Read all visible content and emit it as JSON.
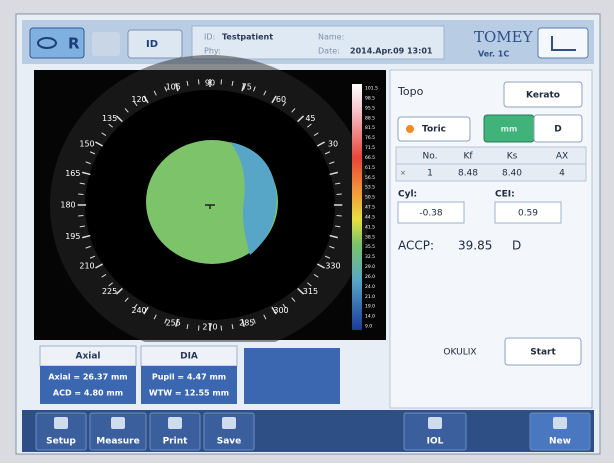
{
  "header": {
    "eye": "R",
    "id_button": "ID",
    "id_label": "ID:",
    "patient": "Testpatient",
    "name_label": "Name:",
    "phy_label": "Phy:",
    "date_label": "Date:",
    "date": "2014.Apr.09  13:01",
    "brand": "TOMEY",
    "version": "Ver. 1C"
  },
  "map": {
    "angle_labels": [
      30,
      45,
      60,
      75,
      90,
      105,
      120,
      135,
      150,
      165,
      180,
      195,
      210,
      225,
      240,
      255,
      270,
      285,
      300,
      315,
      330
    ],
    "scale_labels": [
      "101.5",
      "98.5",
      "95.5",
      "88.5",
      "81.5",
      "76.5",
      "71.5",
      "66.5",
      "61.5",
      "56.5",
      "53.5",
      "50.5",
      "47.5",
      "44.5",
      "41.5",
      "38.5",
      "35.5",
      "32.5",
      "29.0",
      "26.0",
      "24.0",
      "21.0",
      "19.0",
      "14.0",
      "9.0"
    ]
  },
  "panel": {
    "title": "Topo",
    "kerato": "Kerato",
    "toric": "Toric",
    "unit_mm": "mm",
    "unit_d": "D",
    "table": {
      "headers": [
        "No.",
        "Kf",
        "Ks",
        "AX"
      ],
      "row": [
        "1",
        "8.48",
        "8.40",
        "4"
      ]
    },
    "cyl_label": "Cyl:",
    "cyl": "-0.38",
    "cei_label": "CEI:",
    "cei": "0.59",
    "accp_label": "ACCP:",
    "accp": "39.85",
    "accp_unit": "D",
    "okulix": "OKULIX",
    "start": "Start"
  },
  "info": {
    "axial": {
      "title": "Axial",
      "lines": [
        "Axial = 26.37 mm",
        "ACD = 4.80 mm"
      ]
    },
    "dia": {
      "title": "DIA",
      "lines": [
        "Pupil = 4.47 mm",
        "WTW = 12.55 mm"
      ]
    }
  },
  "toolbar": [
    "Setup",
    "Measure",
    "Print",
    "Save",
    "IOL",
    "New"
  ]
}
